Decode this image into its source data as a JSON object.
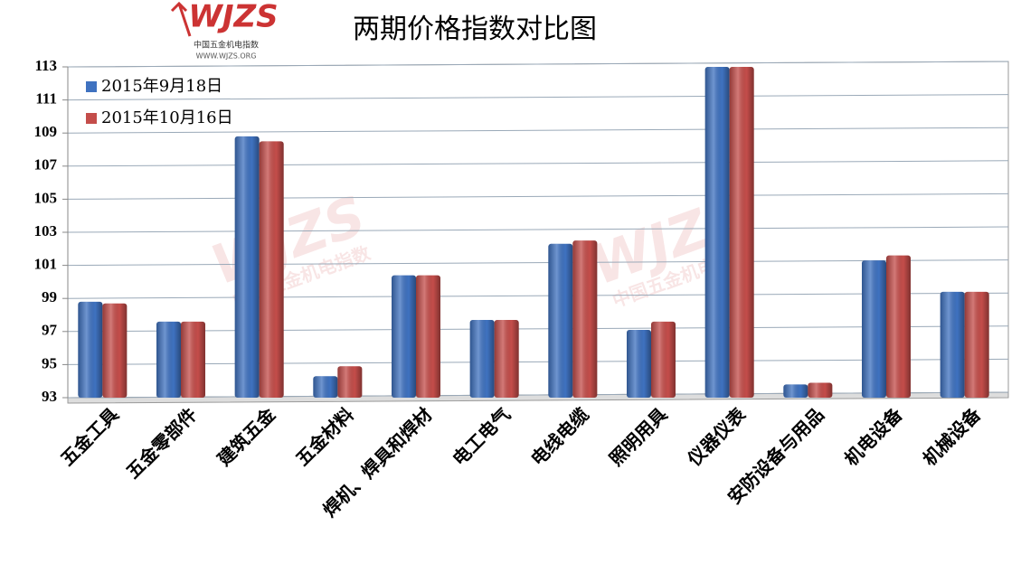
{
  "chart_data": {
    "type": "bar",
    "title": "两期价格指数对比图",
    "logo": {
      "mark": "WJZS",
      "name": "中国五金机电指数",
      "url": "WWW.WJZS.ORG"
    },
    "categories": [
      "五金工具",
      "五金零部件",
      "建筑五金",
      "五金材料",
      "焊机、焊具和焊材",
      "电工电气",
      "电线电缆",
      "照明用具",
      "仪器仪表",
      "安防设备与用品",
      "机电设备",
      "机械设备"
    ],
    "series": [
      {
        "name": "2015年9月18日",
        "color": "#3f72c0",
        "values": [
          98.8,
          97.6,
          108.8,
          94.3,
          100.4,
          97.7,
          102.3,
          97.1,
          113.0,
          93.8,
          101.3,
          99.4
        ]
      },
      {
        "name": "2015年10月16日",
        "color": "#c44d4a",
        "values": [
          98.7,
          97.6,
          108.5,
          94.9,
          100.4,
          97.7,
          102.5,
          97.6,
          113.0,
          93.9,
          101.6,
          99.4
        ]
      }
    ],
    "ylim": [
      93,
      113
    ],
    "yticks": [
      93,
      95,
      97,
      99,
      101,
      103,
      105,
      107,
      109,
      111,
      113
    ],
    "grid": true,
    "legend": "top-left"
  }
}
